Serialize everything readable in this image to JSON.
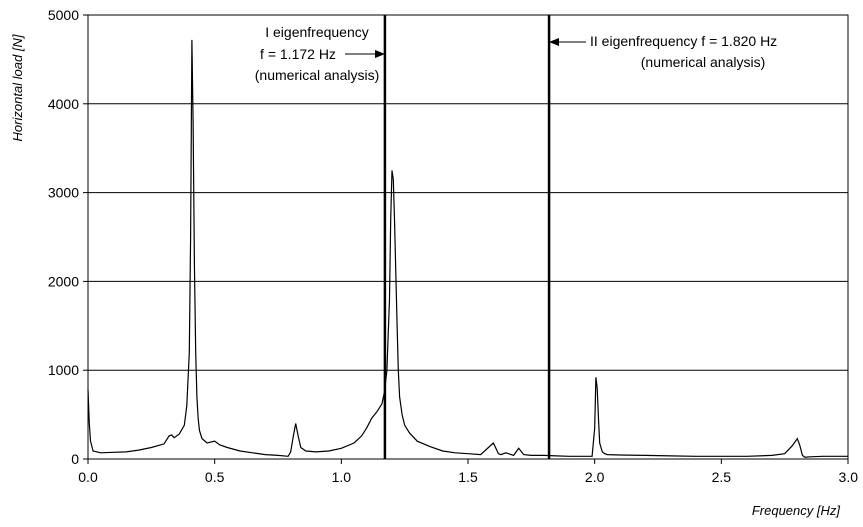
{
  "chart_data": {
    "type": "line",
    "xlabel": "Frequency [Hz]",
    "ylabel": "Horizontal load [N]",
    "xlim": [
      0,
      3.0
    ],
    "ylim": [
      0,
      5000
    ],
    "x_ticks": [
      "0.0",
      "0.5",
      "1.0",
      "1.5",
      "2.0",
      "2.5",
      "3.0"
    ],
    "y_ticks": [
      "0",
      "1000",
      "2000",
      "3000",
      "4000",
      "5000"
    ],
    "grid": "horizontal",
    "series": [
      {
        "x": [
          0.0,
          0.005,
          0.01,
          0.02,
          0.05,
          0.1,
          0.15,
          0.2,
          0.25,
          0.3,
          0.32,
          0.33,
          0.34,
          0.36,
          0.38,
          0.39,
          0.4,
          0.405,
          0.41,
          0.415,
          0.42,
          0.425,
          0.43,
          0.435,
          0.44,
          0.45,
          0.47,
          0.5,
          0.52,
          0.55,
          0.6,
          0.65,
          0.7,
          0.75,
          0.79,
          0.8,
          0.81,
          0.82,
          0.83,
          0.84,
          0.86,
          0.9,
          0.95,
          1.0,
          1.05,
          1.08,
          1.1,
          1.12,
          1.14,
          1.16,
          1.17,
          1.18,
          1.19,
          1.195,
          1.2,
          1.205,
          1.21,
          1.215,
          1.22,
          1.225,
          1.23,
          1.24,
          1.25,
          1.27,
          1.3,
          1.35,
          1.4,
          1.45,
          1.5,
          1.55,
          1.6,
          1.61,
          1.62,
          1.63,
          1.65,
          1.68,
          1.7,
          1.72,
          1.75,
          1.8,
          1.85,
          1.9,
          1.95,
          1.99,
          2.0,
          2.005,
          2.01,
          2.015,
          2.02,
          2.03,
          2.04,
          2.05,
          2.1,
          2.2,
          2.3,
          2.4,
          2.5,
          2.6,
          2.7,
          2.75,
          2.78,
          2.8,
          2.81,
          2.82,
          2.83,
          2.85,
          2.9,
          2.95,
          3.0
        ],
        "y": [
          780,
          400,
          200,
          90,
          70,
          75,
          80,
          100,
          130,
          170,
          260,
          270,
          240,
          280,
          380,
          600,
          1200,
          2500,
          4720,
          3800,
          2200,
          1200,
          700,
          450,
          320,
          230,
          180,
          200,
          160,
          130,
          90,
          70,
          50,
          40,
          30,
          80,
          250,
          400,
          250,
          130,
          90,
          80,
          90,
          120,
          180,
          260,
          350,
          460,
          530,
          620,
          750,
          1000,
          1800,
          2700,
          3250,
          3150,
          2700,
          2100,
          1500,
          1000,
          700,
          500,
          380,
          290,
          200,
          140,
          90,
          70,
          60,
          50,
          180,
          120,
          60,
          50,
          70,
          40,
          120,
          50,
          40,
          40,
          35,
          30,
          30,
          30,
          350,
          920,
          800,
          450,
          180,
          80,
          60,
          50,
          45,
          40,
          35,
          30,
          30,
          30,
          40,
          60,
          150,
          230,
          150,
          40,
          20,
          25,
          30,
          30,
          30
        ]
      }
    ],
    "vertical_lines": [
      1.172,
      1.82
    ],
    "annotations": [
      [
        "I eigenfrequency",
        "f = 1.172 Hz",
        "(numerical analysis)"
      ],
      [
        "II eigenfrequency f = 1.820 Hz",
        "(numerical analysis)"
      ]
    ]
  }
}
